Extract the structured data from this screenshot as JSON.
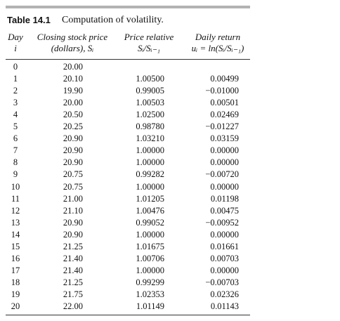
{
  "table": {
    "title": {
      "number": "Table 14.1",
      "text": "Computation of volatility."
    },
    "header": [
      [
        "Day",
        "i"
      ],
      [
        "Closing stock price",
        "(dollars), Sᵢ"
      ],
      [
        "Price relative",
        "Sᵢ/Sᵢ₋₁"
      ],
      [
        "Daily return",
        "uᵢ = ln(Sᵢ/Sᵢ₋₁)"
      ]
    ],
    "rows": [
      [
        "0",
        "20.00"
      ],
      [
        "1",
        "20.10",
        "1.00500",
        "0.00499"
      ],
      [
        "2",
        "19.90",
        "0.99005",
        "−0.01000"
      ],
      [
        "3",
        "20.00",
        "1.00503",
        "0.00501"
      ],
      [
        "4",
        "20.50",
        "1.02500",
        "0.02469"
      ],
      [
        "5",
        "20.25",
        "0.98780",
        "−0.01227"
      ],
      [
        "6",
        "20.90",
        "1.03210",
        "0.03159"
      ],
      [
        "7",
        "20.90",
        "1.00000",
        "0.00000"
      ],
      [
        "8",
        "20.90",
        "1.00000",
        "0.00000"
      ],
      [
        "9",
        "20.75",
        "0.99282",
        "−0.00720"
      ],
      [
        "10",
        "20.75",
        "1.00000",
        "0.00000"
      ],
      [
        "11",
        "21.00",
        "1.01205",
        "0.01198"
      ],
      [
        "12",
        "21.10",
        "1.00476",
        "0.00475"
      ],
      [
        "13",
        "20.90",
        "0.99052",
        "−0.00952"
      ],
      [
        "14",
        "20.90",
        "1.00000",
        "0.00000"
      ],
      [
        "15",
        "21.25",
        "1.01675",
        "0.01661"
      ],
      [
        "16",
        "21.40",
        "1.00706",
        "0.00703"
      ],
      [
        "17",
        "21.40",
        "1.00000",
        "0.00000"
      ],
      [
        "18",
        "21.25",
        "0.99299",
        "−0.00703"
      ],
      [
        "19",
        "21.75",
        "1.02353",
        "0.02326"
      ],
      [
        "20",
        "22.00",
        "1.01149",
        "0.01143"
      ]
    ]
  }
}
